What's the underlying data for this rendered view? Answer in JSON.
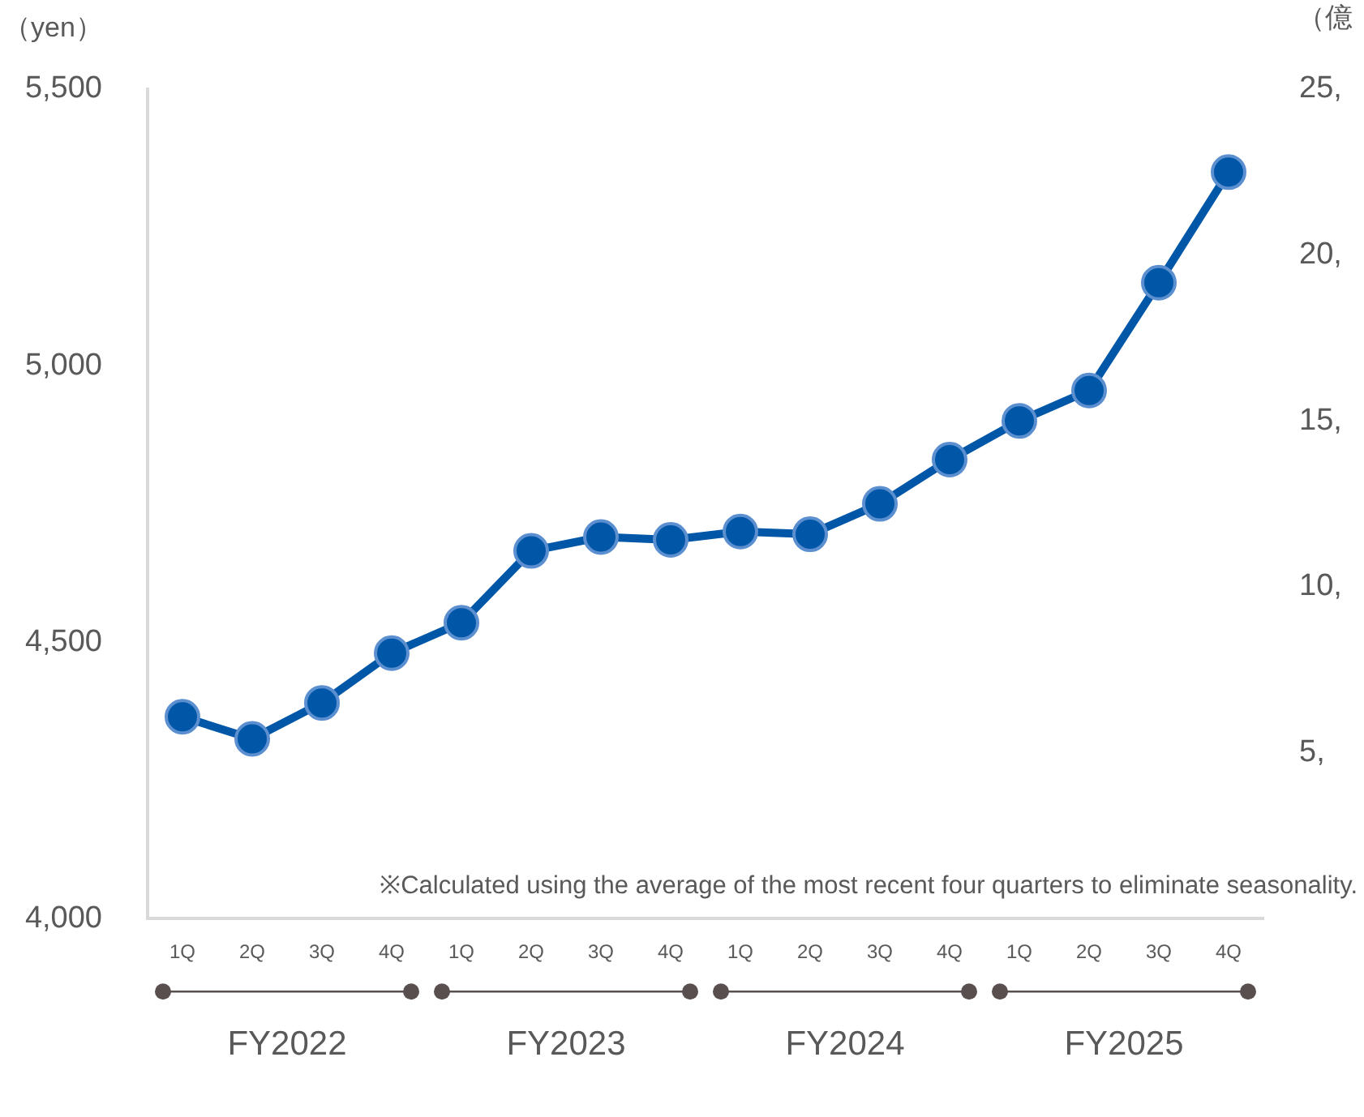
{
  "chart_data": {
    "type": "line",
    "ylabel": "（yen）",
    "y2label": "（億",
    "categories": [
      "1Q",
      "2Q",
      "3Q",
      "4Q",
      "1Q",
      "2Q",
      "3Q",
      "4Q",
      "1Q",
      "2Q",
      "3Q",
      "4Q",
      "1Q",
      "2Q",
      "3Q",
      "4Q"
    ],
    "series": [
      {
        "color": "#0057a8",
        "values": [
          4365,
          4325,
          4390,
          4480,
          4535,
          4665,
          4690,
          4685,
          4700,
          4695,
          4750,
          4830,
          4900,
          4955,
          5150,
          5350
        ]
      }
    ],
    "ylim": [
      4000,
      5500
    ],
    "yticks": [
      {
        "value": 4000,
        "label": "4,000"
      },
      {
        "value": 4500,
        "label": "4,500"
      },
      {
        "value": 5000,
        "label": "5,000"
      },
      {
        "value": 5500,
        "label": "5,500"
      }
    ],
    "y2lim": [
      0,
      25
    ],
    "y2ticks": [
      {
        "value": 5,
        "label": "5,"
      },
      {
        "value": 10,
        "label": "10,"
      },
      {
        "value": 15,
        "label": "15,"
      },
      {
        "value": 20,
        "label": "20,"
      },
      {
        "value": 25,
        "label": "25,"
      }
    ],
    "annotations": [
      "※Calculated using the average of the most recent four quarters to eliminate seasonality.",
      "FY2022",
      "FY2023",
      "FY2024",
      "FY2025"
    ],
    "marker": "circle",
    "line_style": "solid",
    "grid": false,
    "legend": false
  }
}
